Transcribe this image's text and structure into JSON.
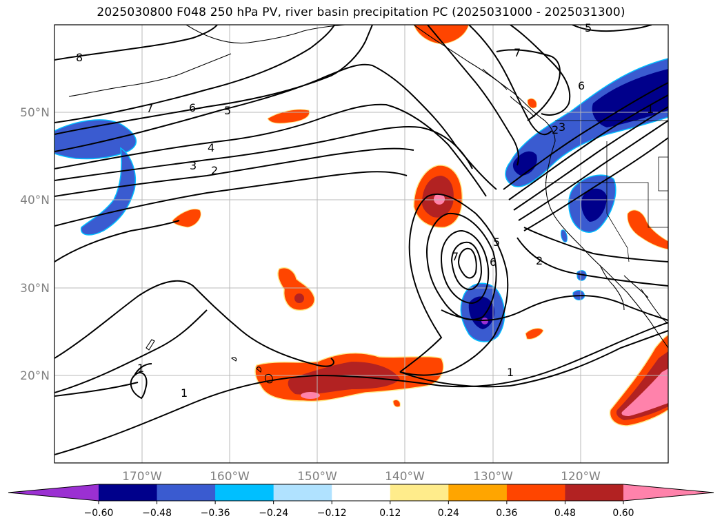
{
  "title": "2025030800 F048 250 hPa PV, river basin precipitation PC (2025031000 - 2025031300)",
  "map": {
    "lon_range": [
      -180,
      -110
    ],
    "lat_range": [
      10,
      60
    ],
    "grid": true,
    "lon_ticks": [
      "170°W",
      "160°W",
      "150°W",
      "140°W",
      "130°W",
      "120°W"
    ],
    "lat_ticks": [
      "50°N",
      "40°N",
      "30°N",
      "20°N"
    ],
    "pv_contour_labels": [
      "8",
      "7",
      "6",
      "5",
      "4",
      "3",
      "2",
      "1",
      "1",
      "1",
      "2",
      "5",
      "6",
      "7",
      "1",
      "2",
      "5",
      "6",
      "7",
      "3"
    ]
  },
  "colorbar": {
    "ticks": [
      "−0.60",
      "−0.48",
      "−0.36",
      "−0.24",
      "−0.12",
      "0.12",
      "0.24",
      "0.36",
      "0.48",
      "0.60"
    ],
    "colors": [
      "#9b30d2",
      "#00008b",
      "#3a5bd0",
      "#00bfff",
      "#b0e2ff",
      "#ffffff",
      "#ffec8b",
      "#ffa500",
      "#ff4500",
      "#b22222",
      "#ff82ab"
    ]
  }
}
